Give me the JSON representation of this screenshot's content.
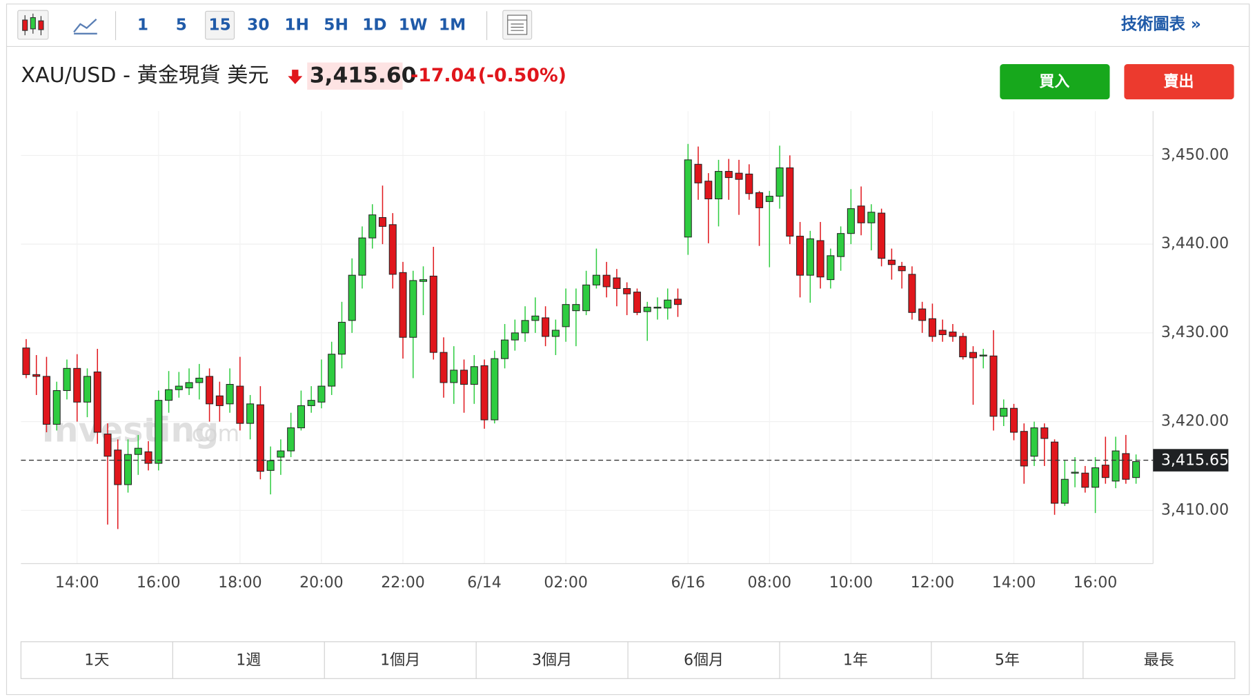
{
  "toolbar": {
    "intervals": [
      "1",
      "5",
      "15",
      "30",
      "1H",
      "5H",
      "1D",
      "1W",
      "1M"
    ],
    "active": "15",
    "link": "技術圖表 »"
  },
  "header": {
    "symbol": "XAU/USD - 黃金現貨 美元",
    "price": "3,415.60",
    "change": "-17.04",
    "change_pct": "(-0.50%)",
    "buy": "買入",
    "sell": "賣出"
  },
  "watermark": {
    "brand": "Investing",
    "suffix": ".com"
  },
  "ranges": [
    "1天",
    "1週",
    "1個月",
    "3個月",
    "6個月",
    "1年",
    "5年",
    "最長"
  ],
  "chart_data": {
    "type": "candlestick",
    "up_color": "#2ecc40",
    "down_color": "#e0161c",
    "grid": true,
    "ylim": [
      3404,
      3455
    ],
    "yticks": [
      {
        "value": 3410,
        "label": "3,410.00"
      },
      {
        "value": 3420,
        "label": "3,420.00"
      },
      {
        "value": 3430,
        "label": "3,430.00"
      },
      {
        "value": 3440,
        "label": "3,440.00"
      },
      {
        "value": 3450,
        "label": "3,450.00"
      }
    ],
    "last_price": {
      "value": 3415.65,
      "label": "3,415.65"
    },
    "categories": [
      null,
      null,
      null,
      null,
      null,
      "14:00",
      null,
      null,
      null,
      null,
      null,
      null,
      null,
      "16:00",
      null,
      null,
      null,
      null,
      null,
      null,
      null,
      "18:00",
      null,
      null,
      null,
      null,
      null,
      null,
      null,
      "20:00",
      null,
      null,
      null,
      null,
      null,
      null,
      null,
      "22:00",
      null,
      null,
      null,
      null,
      null,
      null,
      null,
      "6/14",
      null,
      null,
      null,
      null,
      null,
      null,
      null,
      "02:00",
      null,
      null,
      null,
      null,
      null,
      null,
      null,
      null,
      null,
      null,
      null,
      "6/16",
      null,
      null,
      null,
      null,
      null,
      null,
      null,
      "08:00",
      null,
      null,
      null,
      null,
      null,
      null,
      null,
      "10:00",
      null,
      null,
      null,
      null,
      null,
      null,
      null,
      "12:00",
      null,
      null,
      null,
      null,
      null,
      null,
      null,
      "14:00",
      null,
      null,
      null,
      null,
      null,
      null,
      null,
      "16:00",
      null,
      null,
      null,
      null
    ],
    "open": [
      3428.3,
      3425.3,
      3425.1,
      3419.7,
      3423.5,
      3426.0,
      3422.2,
      3425.6,
      3418.6,
      3416.8,
      3412.9,
      3416.3,
      3416.6,
      3415.3,
      3422.4,
      3423.6,
      3423.8,
      3424.4,
      3425.1,
      3422.9,
      3422.0,
      3424.0,
      3419.8,
      3421.9,
      3414.5,
      3416.0,
      3416.7,
      3419.3,
      3421.8,
      3422.2,
      3424.0,
      3427.6,
      3431.4,
      3436.5,
      3440.7,
      3443.0,
      3442.2,
      3436.8,
      3429.5,
      3435.8,
      3436.4,
      3427.8,
      3424.4,
      3425.8,
      3424.2,
      3426.3,
      3420.2,
      3427.1,
      3429.2,
      3430.0,
      3431.4,
      3431.7,
      3429.6,
      3430.7,
      3432.5,
      3432.5,
      3435.4,
      3436.5,
      3436.2,
      3435.0,
      3434.6,
      3432.4,
      3432.8,
      3432.8,
      3433.8,
      3440.8,
      3449.0,
      3447.1,
      3445.1,
      3448.2,
      3448.0,
      3447.9,
      3445.8,
      3444.8,
      3445.4,
      3448.6,
      3440.9,
      3436.5,
      3440.4,
      3436.0,
      3438.6,
      3441.2,
      3444.3,
      3442.4,
      3443.5,
      3438.2,
      3437.5,
      3436.6,
      3432.7,
      3431.6,
      3430.3,
      3430.1,
      3429.6,
      3427.8,
      3427.4,
      3427.4,
      3420.6,
      3421.5,
      3418.9,
      3416.1,
      3419.3,
      3417.7,
      3410.8,
      3414.2,
      3414.2,
      3412.6,
      3415.1,
      3413.3,
      3416.4,
      3413.7
    ],
    "high": [
      3429.3,
      3427.5,
      3427.3,
      3424.5,
      3427.0,
      3427.6,
      3426.0,
      3428.2,
      3419.8,
      3418.0,
      3418.0,
      3418.5,
      3417.8,
      3423.5,
      3425.7,
      3425.6,
      3426.0,
      3426.5,
      3426.0,
      3424.5,
      3426.0,
      3427.3,
      3423.0,
      3424.0,
      3417.2,
      3418.0,
      3421.0,
      3423.5,
      3424.0,
      3427.0,
      3429.0,
      3433.5,
      3438.4,
      3442.0,
      3444.5,
      3446.6,
      3443.5,
      3438.0,
      3437.0,
      3437.5,
      3439.7,
      3429.5,
      3428.5,
      3427.0,
      3427.5,
      3427.0,
      3428.0,
      3431.0,
      3431.5,
      3433.0,
      3434.0,
      3433.0,
      3431.5,
      3435.0,
      3435.0,
      3437.0,
      3439.5,
      3438.0,
      3437.2,
      3435.7,
      3435.0,
      3433.5,
      3434.0,
      3435.0,
      3435.0,
      3451.3,
      3451.0,
      3448.0,
      3449.5,
      3449.6,
      3449.5,
      3449.0,
      3446.0,
      3446.0,
      3451.1,
      3450.0,
      3442.5,
      3441.5,
      3442.5,
      3439.5,
      3442.0,
      3446.2,
      3446.5,
      3444.5,
      3444.0,
      3439.5,
      3438.0,
      3437.5,
      3433.5,
      3433.3,
      3431.5,
      3431.0,
      3430.0,
      3428.5,
      3428.2,
      3430.3,
      3422.5,
      3422.0,
      3419.8,
      3420.0,
      3419.8,
      3418.0,
      3415.6,
      3416.0,
      3415.0,
      3416.0,
      3418.3,
      3418.3,
      3418.5,
      3416.3
    ],
    "low": [
      3424.9,
      3423.0,
      3418.8,
      3419.0,
      3422.5,
      3420.0,
      3420.5,
      3417.5,
      3408.4,
      3407.9,
      3412.0,
      3414.0,
      3414.5,
      3414.5,
      3421.0,
      3422.7,
      3423.0,
      3422.5,
      3420.0,
      3420.0,
      3421.0,
      3419.0,
      3418.0,
      3413.5,
      3411.8,
      3414.0,
      3416.0,
      3419.0,
      3421.0,
      3421.5,
      3423.0,
      3426.0,
      3430.0,
      3435.0,
      3439.5,
      3440.0,
      3435.0,
      3427.1,
      3424.9,
      3432.0,
      3427.0,
      3422.7,
      3422.0,
      3421.0,
      3422.0,
      3419.2,
      3419.8,
      3426.0,
      3428.0,
      3429.0,
      3430.0,
      3428.5,
      3427.5,
      3429.0,
      3428.5,
      3432.0,
      3435.0,
      3434.0,
      3433.0,
      3432.0,
      3432.0,
      3429.1,
      3431.5,
      3431.5,
      3431.8,
      3438.8,
      3445.0,
      3440.1,
      3442.0,
      3445.0,
      3443.3,
      3445.0,
      3439.8,
      3437.4,
      3444.0,
      3440.0,
      3434.0,
      3433.4,
      3435.0,
      3435.0,
      3437.0,
      3440.0,
      3441.0,
      3439.3,
      3437.5,
      3436.0,
      3435.0,
      3431.5,
      3430.0,
      3429.0,
      3429.0,
      3429.0,
      3427.0,
      3421.9,
      3426.0,
      3419.0,
      3419.5,
      3417.9,
      3413.0,
      3415.0,
      3415.0,
      3409.5,
      3410.5,
      3412.6,
      3412.0,
      3409.7,
      3413.0,
      3412.5,
      3413.0,
      3413.0
    ],
    "close": [
      3425.3,
      3425.1,
      3419.7,
      3423.5,
      3426.0,
      3422.2,
      3425.1,
      3418.8,
      3416.1,
      3412.9,
      3416.3,
      3417.0,
      3415.3,
      3422.4,
      3423.6,
      3424.0,
      3424.4,
      3424.9,
      3422.0,
      3421.8,
      3424.2,
      3419.8,
      3422.0,
      3414.4,
      3415.6,
      3416.7,
      3419.3,
      3421.8,
      3422.4,
      3424.0,
      3427.6,
      3431.2,
      3436.5,
      3440.7,
      3443.3,
      3442.0,
      3436.6,
      3429.5,
      3435.9,
      3436.0,
      3427.8,
      3424.4,
      3425.8,
      3424.2,
      3426.2,
      3420.2,
      3427.1,
      3429.2,
      3430.0,
      3431.4,
      3431.9,
      3429.6,
      3430.3,
      3433.2,
      3433.2,
      3435.4,
      3436.5,
      3435.2,
      3435.0,
      3434.4,
      3432.3,
      3432.9,
      3432.9,
      3433.7,
      3433.2,
      3449.5,
      3446.9,
      3445.1,
      3448.2,
      3447.5,
      3447.3,
      3445.7,
      3444.1,
      3445.4,
      3448.6,
      3440.9,
      3436.5,
      3440.6,
      3436.3,
      3438.7,
      3441.2,
      3444.0,
      3442.4,
      3443.6,
      3438.4,
      3437.7,
      3437.0,
      3432.3,
      3431.4,
      3429.6,
      3429.8,
      3429.6,
      3427.3,
      3427.2,
      3427.5,
      3420.6,
      3421.5,
      3418.8,
      3415.0,
      3419.3,
      3418.1,
      3410.8,
      3413.5,
      3414.3,
      3412.6,
      3414.8,
      3413.7,
      3416.7,
      3413.5,
      3415.5
    ]
  }
}
